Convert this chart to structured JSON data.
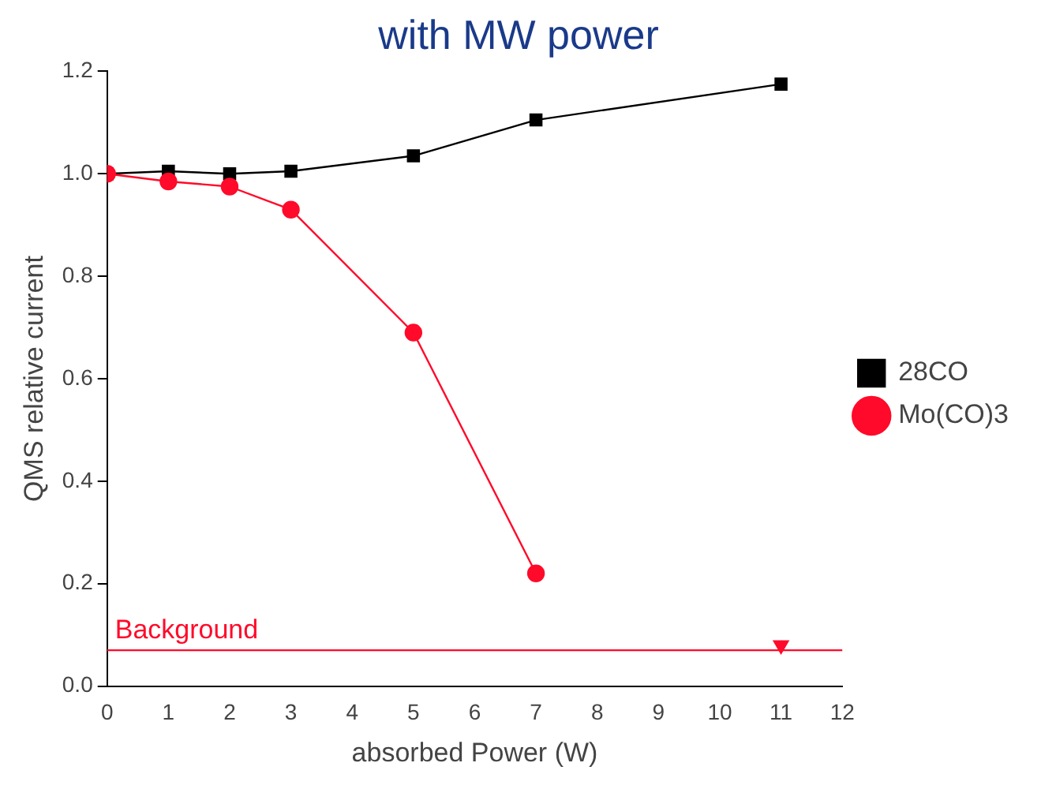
{
  "chart_data": {
    "type": "line",
    "title": "with MW power",
    "xlabel": "absorbed Power (W)",
    "ylabel": "QMS relative current",
    "xlim": [
      0,
      12
    ],
    "xticks": [
      0,
      1,
      2,
      3,
      4,
      5,
      6,
      7,
      8,
      9,
      10,
      11,
      12
    ],
    "ylim": [
      0,
      1.2
    ],
    "yticks": [
      {
        "value": 0,
        "label": "0.0"
      },
      {
        "value": 0.2,
        "label": "0.2"
      },
      {
        "value": 0.4,
        "label": "0.4"
      },
      {
        "value": 0.6,
        "label": "0.6"
      },
      {
        "value": 0.8,
        "label": "0.8"
      },
      {
        "value": 1,
        "label": "1.0"
      },
      {
        "value": 1.2,
        "label": "1.2"
      }
    ],
    "grid": false,
    "legend": "right",
    "series": [
      {
        "name": "28CO",
        "color": "#000000",
        "marker": "square",
        "x": [
          0,
          1,
          2,
          3,
          5,
          7,
          11
        ],
        "values": [
          1.0,
          1.005,
          1.0,
          1.005,
          1.035,
          1.105,
          1.175
        ]
      },
      {
        "name": "Mo(CO)3",
        "color": "#ff0a2a",
        "marker": "circle",
        "x": [
          0,
          1,
          2,
          3,
          5,
          7
        ],
        "values": [
          1.0,
          0.985,
          0.975,
          0.93,
          0.69,
          0.22
        ]
      },
      {
        "type": "scatter",
        "color": "#ff0a2a",
        "marker": "triangle",
        "x": [
          11
        ],
        "values": [
          0.08
        ]
      }
    ],
    "ref_lines": [
      {
        "axis": "y",
        "value": 0.07,
        "label": "Background",
        "color": "#ff0a2a"
      }
    ]
  }
}
